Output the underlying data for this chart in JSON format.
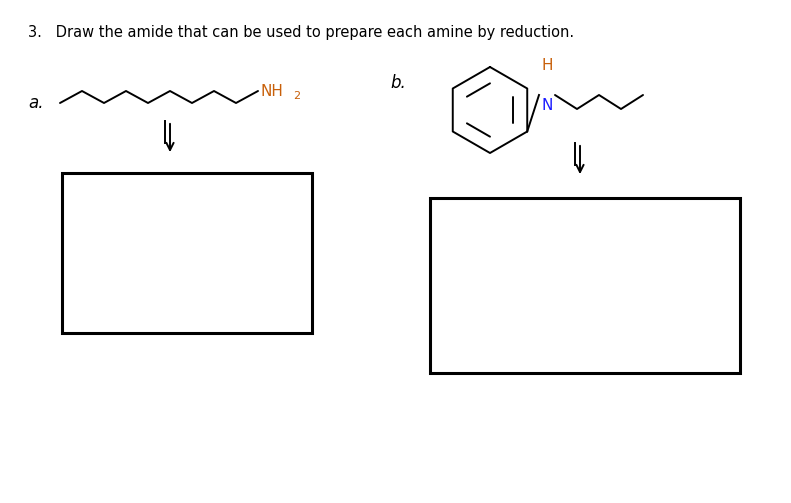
{
  "title_text": "3.   Draw the amide that can be used to prepare each amine by reduction.",
  "label_a": "a.",
  "label_b": "b.",
  "background_color": "#ffffff",
  "text_color": "#000000",
  "nh2_color": "#c8600a",
  "h_color": "#c8600a",
  "n_color": "#1a1aff",
  "figsize": [
    7.91,
    5.03
  ],
  "dpi": 100
}
